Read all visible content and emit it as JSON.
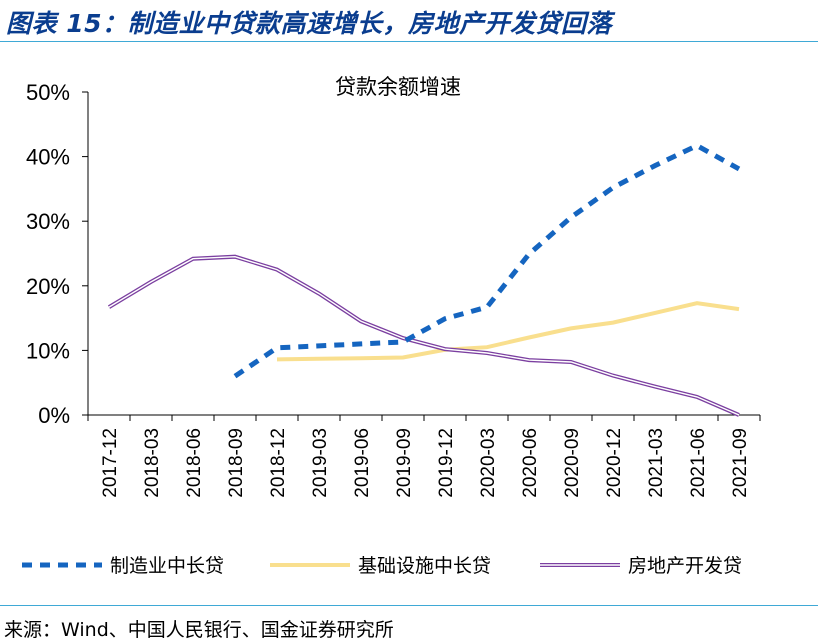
{
  "header": {
    "title": "图表 15：制造业中贷款高速增长，房地产开发贷回落"
  },
  "footer": {
    "source": "来源：Wind、中国人民银行、国金证券研究所"
  },
  "colors": {
    "manufacturing": "#1565c0",
    "infrastructure": "#f9df8e",
    "real_estate": "#7b3fa0",
    "rule": "#3fa9d6",
    "title": "#0a3d8f"
  },
  "chart_data": {
    "type": "line",
    "title": "贷款余额增速",
    "xlabel": "",
    "ylabel": "",
    "ylim": [
      0,
      50
    ],
    "yticks": [
      "0%",
      "10%",
      "20%",
      "30%",
      "40%",
      "50%"
    ],
    "categories": [
      "2017-12",
      "2018-03",
      "2018-06",
      "2018-09",
      "2018-12",
      "2019-03",
      "2019-06",
      "2019-09",
      "2019-12",
      "2020-03",
      "2020-06",
      "2020-09",
      "2020-12",
      "2021-03",
      "2021-06",
      "2021-09"
    ],
    "legend_position": "bottom",
    "grid": false,
    "series": [
      {
        "name": "制造业中长贷",
        "style": "dashed",
        "values": [
          null,
          null,
          null,
          6.0,
          10.4,
          10.7,
          11.0,
          11.3,
          14.9,
          16.7,
          24.9,
          30.6,
          35.2,
          38.6,
          41.7,
          38.1
        ]
      },
      {
        "name": "基础设施中长贷",
        "style": "solid",
        "values": [
          null,
          null,
          null,
          null,
          8.6,
          8.7,
          8.8,
          8.9,
          10.1,
          10.5,
          12.0,
          13.4,
          14.3,
          15.8,
          17.3,
          16.4
        ]
      },
      {
        "name": "房地产开发贷",
        "style": "double",
        "values": [
          16.7,
          20.6,
          24.2,
          24.5,
          22.5,
          18.8,
          14.5,
          11.9,
          10.2,
          9.6,
          8.5,
          8.2,
          6.1,
          4.4,
          2.8,
          0.0
        ]
      }
    ]
  }
}
